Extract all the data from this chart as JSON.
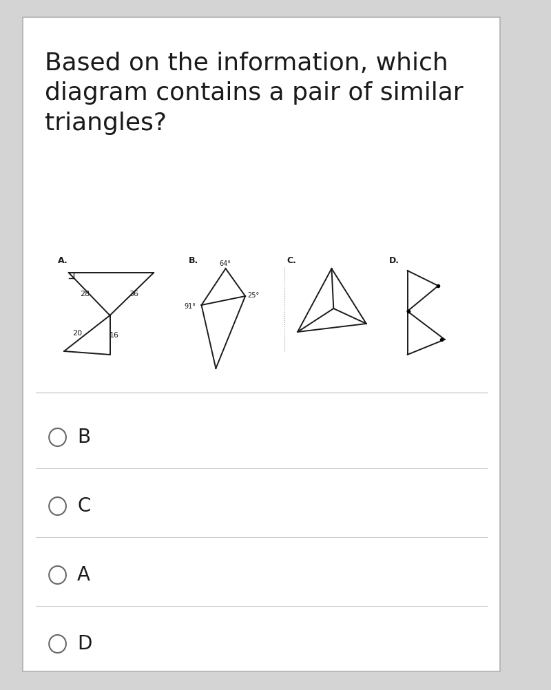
{
  "title": "Based on the information, which\ndiagram contains a pair of similar\ntriangles?",
  "title_fontsize": 26,
  "bg_color": "#ffffff",
  "border_color": "#b0b0b0",
  "outer_bg": "#d4d4d4",
  "options": [
    "B",
    "C",
    "A",
    "D"
  ],
  "line_color": "#1a1a1a",
  "line_width": 1.4
}
